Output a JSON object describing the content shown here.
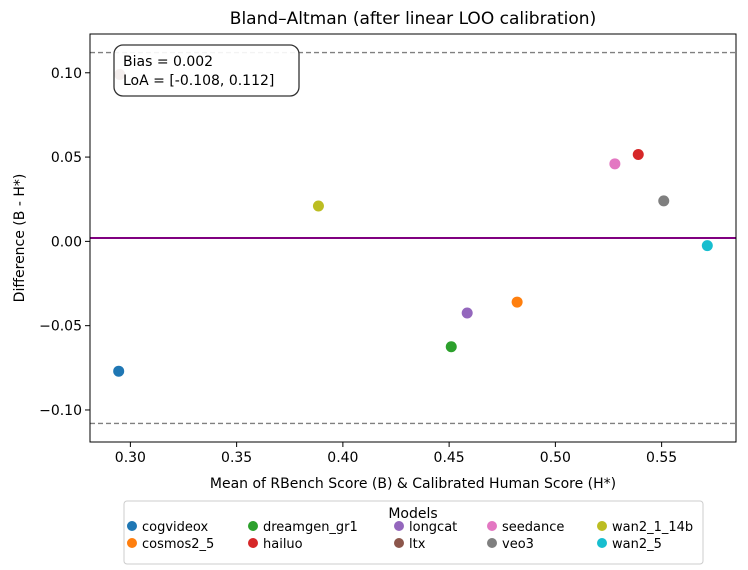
{
  "chart_data": {
    "type": "scatter",
    "title": "Bland–Altman (after linear LOO calibration)",
    "xlabel": "Mean of RBench Score (B) & Calibrated Human Score (H*)",
    "ylabel": "Difference (B - H*)",
    "xlim": [
      0.281,
      0.585
    ],
    "ylim": [
      -0.119,
      0.123
    ],
    "x_ticks": [
      0.3,
      0.35,
      0.4,
      0.45,
      0.5,
      0.55
    ],
    "x_tick_labels": [
      "0.30",
      "0.35",
      "0.40",
      "0.45",
      "0.50",
      "0.55"
    ],
    "y_ticks": [
      -0.1,
      -0.05,
      0.0,
      0.05,
      0.1
    ],
    "y_tick_labels": [
      "−0.10",
      "−0.05",
      "0.00",
      "0.05",
      "0.10"
    ],
    "grid": false,
    "bias": 0.002,
    "loa": [
      -0.108,
      0.112
    ],
    "annotation": {
      "bias_text": "Bias = 0.002",
      "loa_text": "LoA = [-0.108, 0.112]"
    },
    "legend_title": "Models",
    "legend_placement": "bottom-center",
    "series": [
      {
        "name": "cogvideox",
        "color": "#1f77b4",
        "x": 0.2945,
        "y": -0.077
      },
      {
        "name": "cosmos2_5",
        "color": "#ff7f0e",
        "x": 0.482,
        "y": -0.036
      },
      {
        "name": "dreamgen_gr1",
        "color": "#2ca02c",
        "x": 0.451,
        "y": -0.0625
      },
      {
        "name": "hailuo",
        "color": "#d62728",
        "x": 0.539,
        "y": 0.0515
      },
      {
        "name": "longcat",
        "color": "#9467bd",
        "x": 0.4585,
        "y": -0.0425
      },
      {
        "name": "ltx",
        "color": "#8c564b",
        "x": 0.295,
        "y": 0.099
      },
      {
        "name": "seedance",
        "color": "#e377c2",
        "x": 0.528,
        "y": 0.046
      },
      {
        "name": "veo3",
        "color": "#7f7f7f",
        "x": 0.551,
        "y": 0.024
      },
      {
        "name": "wan2_1_14b",
        "color": "#bcbd22",
        "x": 0.3885,
        "y": 0.021
      },
      {
        "name": "wan2_5",
        "color": "#17becf",
        "x": 0.5715,
        "y": -0.0025
      }
    ],
    "legend_order": [
      "cogvideox",
      "cosmos2_5",
      "dreamgen_gr1",
      "hailuo",
      "longcat",
      "ltx",
      "seedance",
      "veo3",
      "wan2_1_14b",
      "wan2_5"
    ],
    "colors": {
      "bias_line": "#800080",
      "loa_line": "#808080"
    }
  }
}
